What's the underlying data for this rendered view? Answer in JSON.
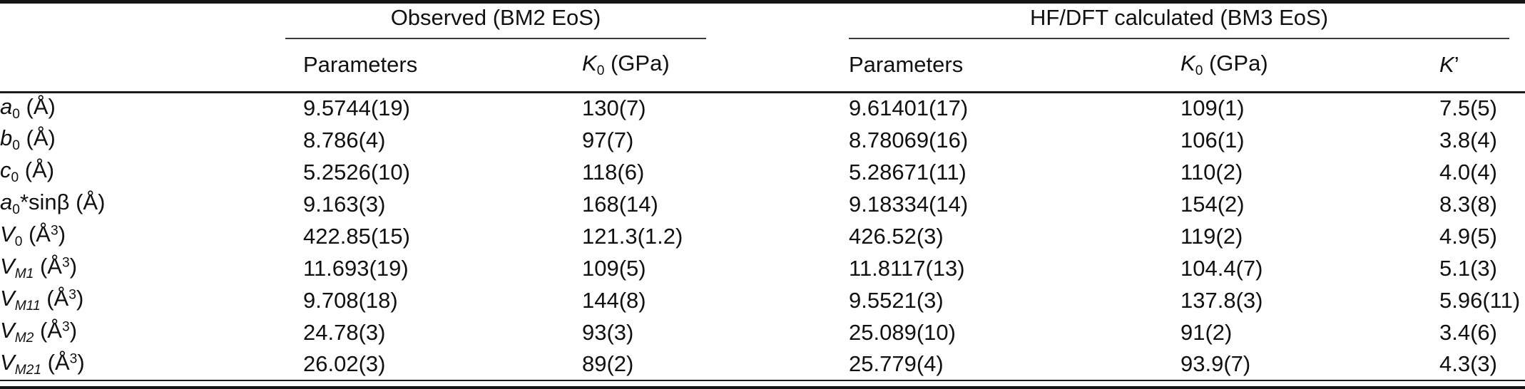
{
  "colors": {
    "text": "#111111",
    "rule": "#1c1c1c",
    "group_rule": "#3a3a3a",
    "background": "#ffffff"
  },
  "table": {
    "groups": [
      {
        "title": "Observed (BM2 EoS)"
      },
      {
        "title": "HF/DFT calculated (BM3 EoS)"
      }
    ],
    "subheaders": [
      [
        {
          "t": "Parameters"
        }
      ],
      [
        {
          "t": "K",
          "s": "i"
        },
        {
          "t": "0",
          "s": "sub"
        },
        {
          "t": " (GPa)"
        }
      ],
      [
        {
          "t": "Parameters"
        }
      ],
      [
        {
          "t": "K",
          "s": "i"
        },
        {
          "t": "0",
          "s": "sub"
        },
        {
          "t": " (GPa)"
        }
      ],
      [
        {
          "t": "K",
          "s": "i"
        },
        {
          "t": "’"
        }
      ]
    ],
    "rows": [
      {
        "label": [
          {
            "t": "a",
            "s": "i"
          },
          {
            "t": "0",
            "s": "sub"
          },
          {
            "t": " (Å)"
          }
        ],
        "values": [
          "9.5744(19)",
          "130(7)",
          "9.61401(17)",
          "109(1)",
          "7.5(5)"
        ]
      },
      {
        "label": [
          {
            "t": "b",
            "s": "i"
          },
          {
            "t": "0",
            "s": "sub"
          },
          {
            "t": " (Å)"
          }
        ],
        "values": [
          "8.786(4)",
          "97(7)",
          "8.78069(16)",
          "106(1)",
          "3.8(4)"
        ]
      },
      {
        "label": [
          {
            "t": "c",
            "s": "i"
          },
          {
            "t": "0",
            "s": "sub"
          },
          {
            "t": " (Å)"
          }
        ],
        "values": [
          "5.2526(10)",
          "118(6)",
          "5.28671(11)",
          "110(2)",
          "4.0(4)"
        ]
      },
      {
        "label": [
          {
            "t": "a",
            "s": "i"
          },
          {
            "t": "0",
            "s": "sub"
          },
          {
            "t": "*sinβ (Å)"
          }
        ],
        "values": [
          "9.163(3)",
          "168(14)",
          "9.18334(14)",
          "154(2)",
          "8.3(8)"
        ]
      },
      {
        "label": [
          {
            "t": "V",
            "s": "i"
          },
          {
            "t": "0",
            "s": "sub"
          },
          {
            "t": " (Å"
          },
          {
            "t": "3",
            "s": "sup"
          },
          {
            "t": ")"
          }
        ],
        "values": [
          "422.85(15)",
          "121.3(1.2)",
          "426.52(3)",
          "119(2)",
          "4.9(5)"
        ]
      },
      {
        "label": [
          {
            "t": "V",
            "s": "i"
          },
          {
            "t": "M1",
            "s": "isub"
          },
          {
            "t": " (Å"
          },
          {
            "t": "3",
            "s": "sup"
          },
          {
            "t": ")"
          }
        ],
        "values": [
          "11.693(19)",
          "109(5)",
          "11.8117(13)",
          "104.4(7)",
          "5.1(3)"
        ]
      },
      {
        "label": [
          {
            "t": "V",
            "s": "i"
          },
          {
            "t": "M11",
            "s": "isub"
          },
          {
            "t": " (Å"
          },
          {
            "t": "3",
            "s": "sup"
          },
          {
            "t": ")"
          }
        ],
        "values": [
          "9.708(18)",
          "144(8)",
          "9.5521(3)",
          "137.8(3)",
          "5.96(11)"
        ]
      },
      {
        "label": [
          {
            "t": "V",
            "s": "i"
          },
          {
            "t": "M2",
            "s": "isub"
          },
          {
            "t": " (Å"
          },
          {
            "t": "3",
            "s": "sup"
          },
          {
            "t": ")"
          }
        ],
        "values": [
          "24.78(3)",
          "93(3)",
          "25.089(10)",
          "91(2)",
          "3.4(6)"
        ]
      },
      {
        "label": [
          {
            "t": "V",
            "s": "i"
          },
          {
            "t": "M21",
            "s": "isub"
          },
          {
            "t": " (Å"
          },
          {
            "t": "3",
            "s": "sup"
          },
          {
            "t": ")"
          }
        ],
        "values": [
          "26.02(3)",
          "89(2)",
          "25.779(4)",
          "93.9(7)",
          "4.3(3)"
        ]
      }
    ]
  }
}
